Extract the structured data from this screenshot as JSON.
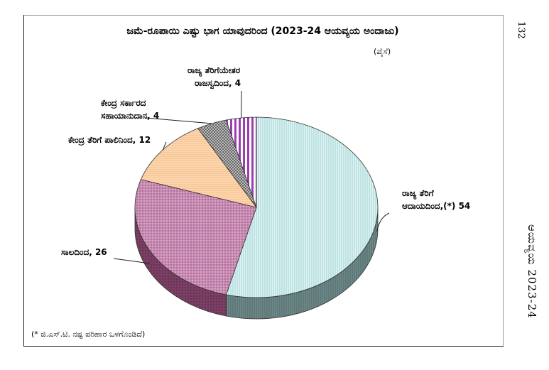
{
  "page": {
    "page_number": "132",
    "side_title": "ಆಯವ್ಯಯ 2023-24"
  },
  "chart_data": {
    "type": "pie",
    "title": "ಜಮೆ-ರೂಪಾಯಿ ಎಷ್ಟು ಭಾಗ ಯಾವುದರಿಂದ (2023-24 ಆಯವ್ಯಯ ಅಂದಾಜು)",
    "unit": "(ಪೈಸೆ)",
    "footnote": "(* ಜಿ.ಎಸ್.ಟಿ. ನಷ್ಟ ಪರಿಹಾರ ಒಳಗೊಂಡಿದೆ)",
    "slices": [
      {
        "label_line1": "ರಾಜ್ಯ ತೆರಿಗೆ",
        "label_line2": "ಆದಾಯದಿಂದ,(*)",
        "value": 54,
        "color": "#d8f1f1",
        "side_color": "#6f8a8a"
      },
      {
        "label_line1": "",
        "label_line2": "ಸಾಲದಿಂದ,",
        "value": 26,
        "color": "#c98bb3",
        "side_color": "#7a3f63"
      },
      {
        "label_line1": "",
        "label_line2": "ಕೇಂದ್ರ ತೆರಿಗೆ ಪಾಲಿನಿಂದ,",
        "value": 12,
        "color": "#fcd2a8",
        "side_color": "#a4805a"
      },
      {
        "label_line1": "ಕೇಂದ್ರ ಸರ್ಕಾರದ",
        "label_line2": "ಸಹಾಯಾನುದಾನ,",
        "value": 4,
        "color": "#c4c4c4",
        "side_color": "#6a6a6a"
      },
      {
        "label_line1": "ರಾಜ್ಯ ತೆರಿಗೆಯೇತರ",
        "label_line2": "ರಾಜಸ್ವದಿಂದ,",
        "value": 4,
        "color": "#9b3fb0",
        "side_color": "#5a1f6a"
      }
    ]
  }
}
